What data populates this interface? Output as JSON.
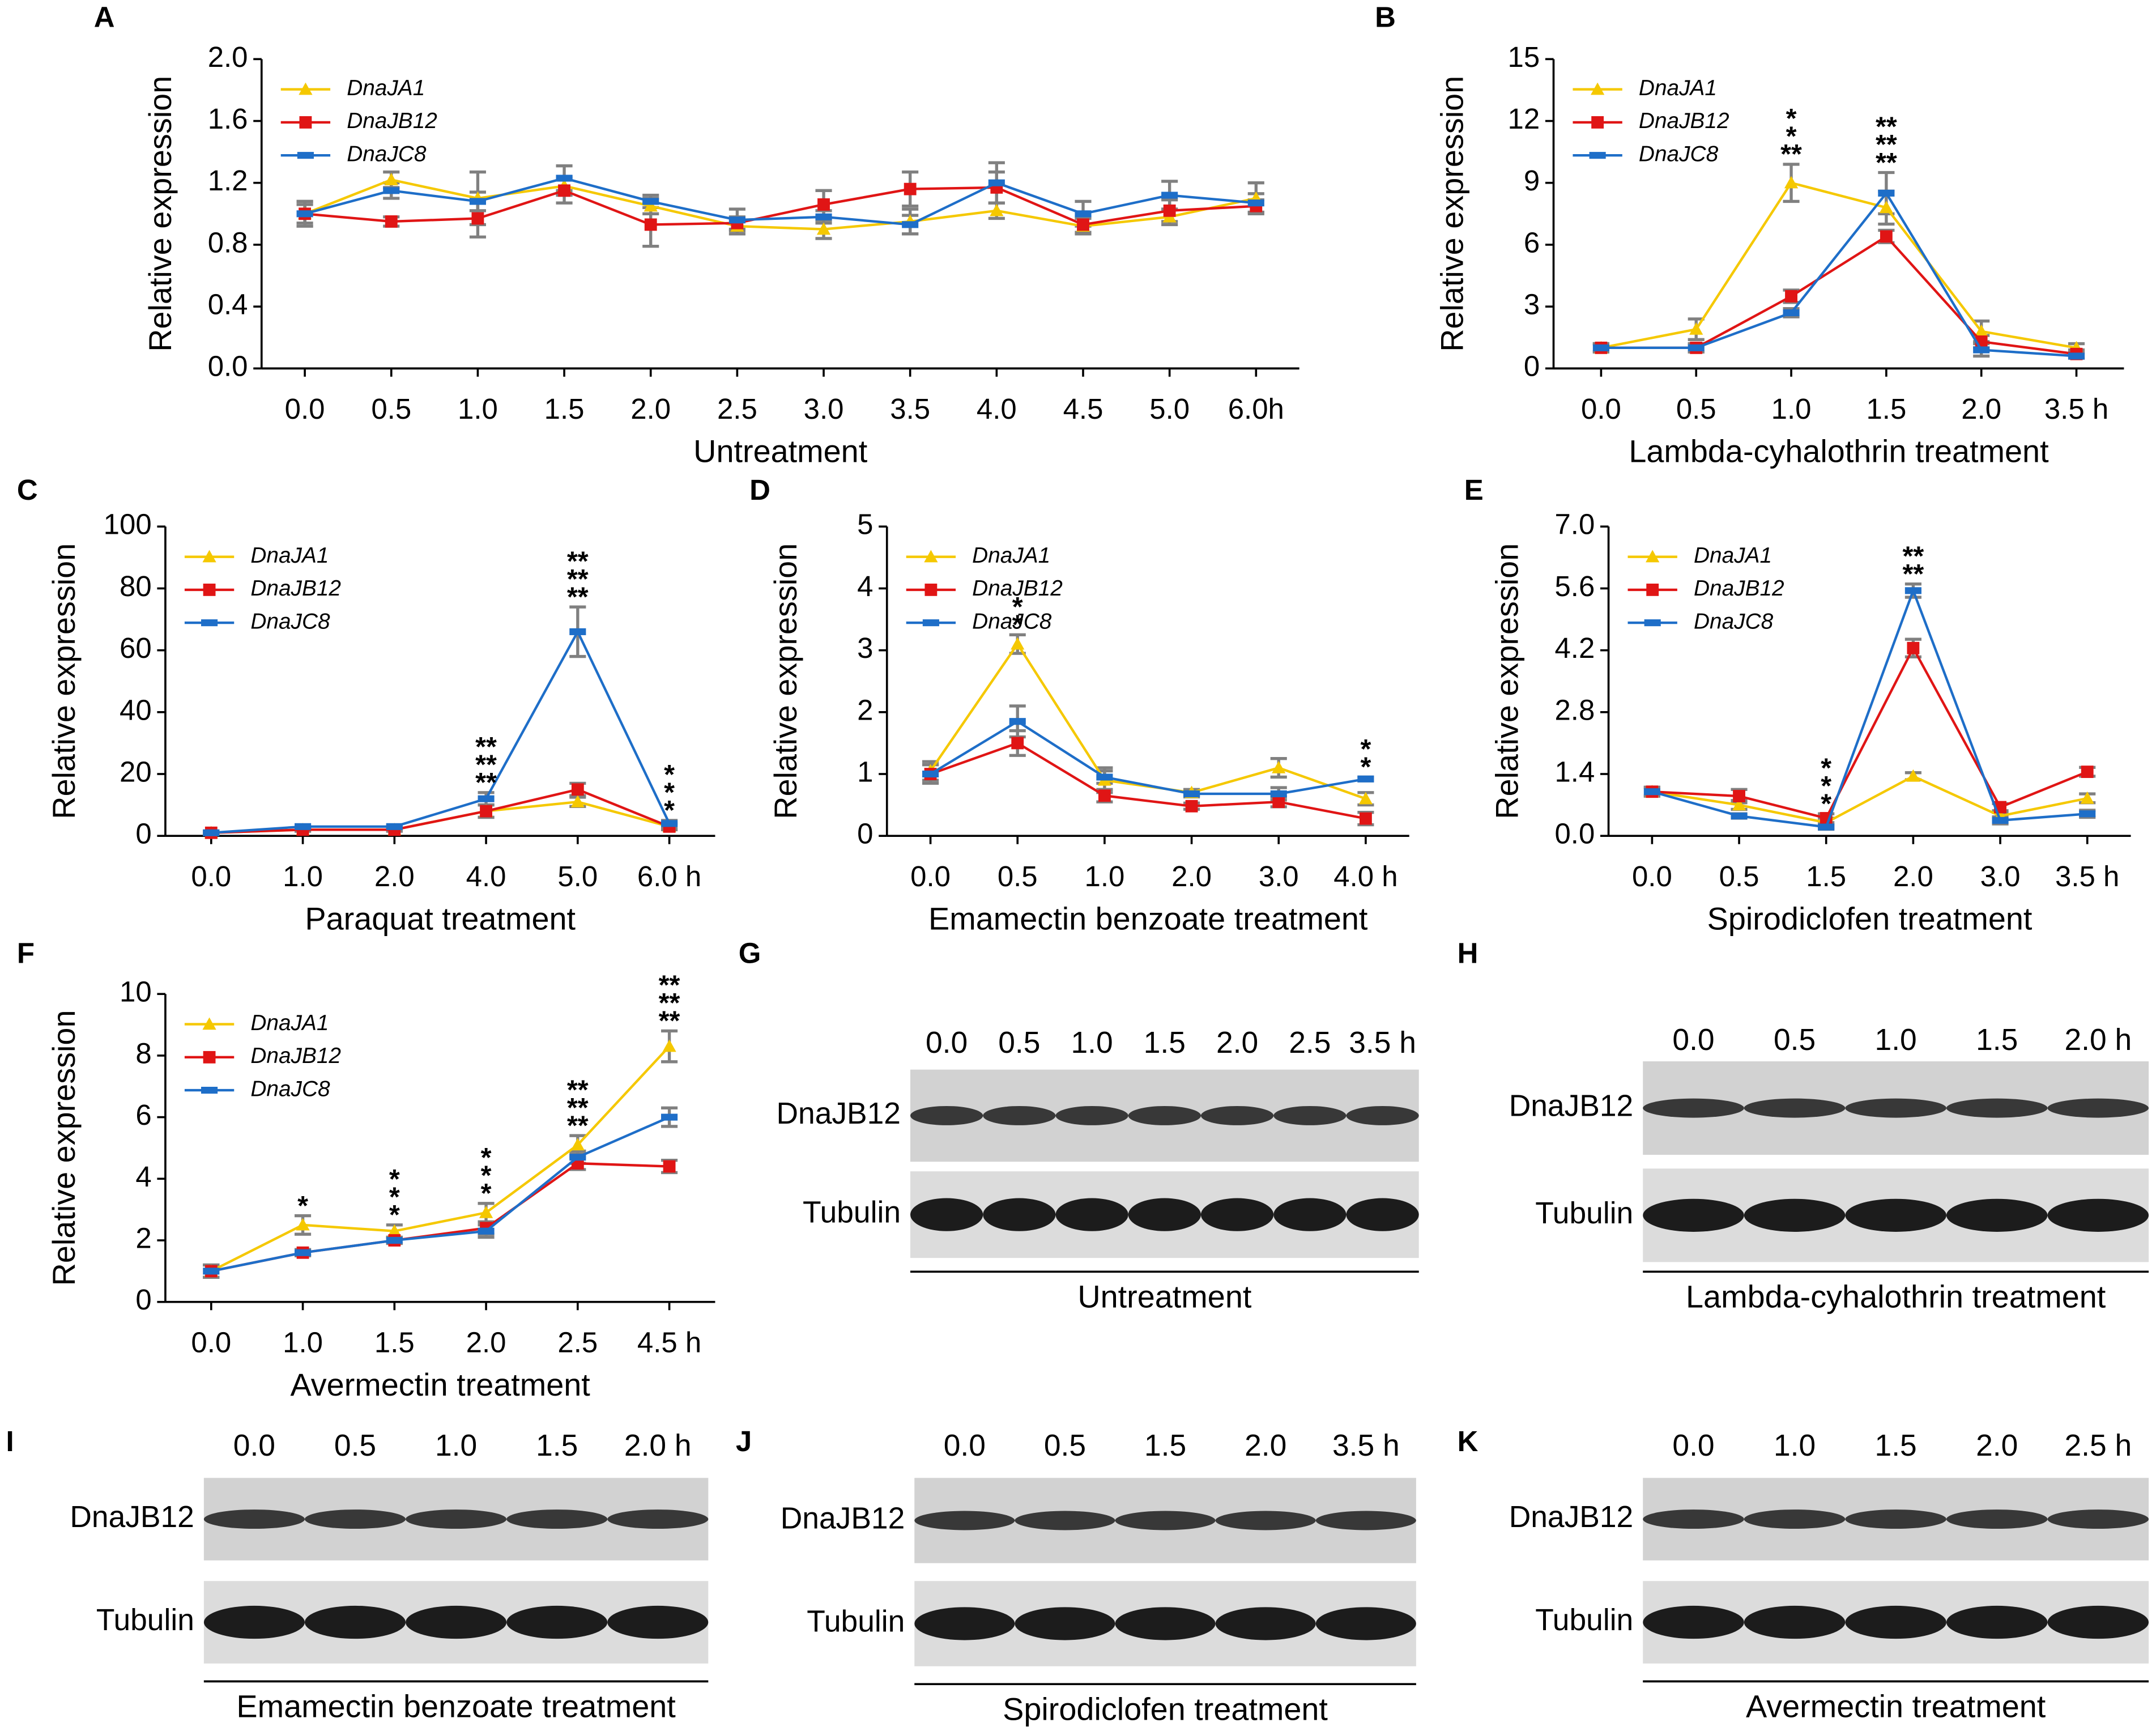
{
  "chart_data": [
    {
      "type": "line",
      "panel": "A",
      "xlabel": "Untreatment",
      "ylabel": "Relative expression",
      "categories": [
        "0.0",
        "0.5",
        "1.0",
        "1.5",
        "2.0",
        "2.5",
        "3.0",
        "3.5",
        "4.0",
        "4.5",
        "5.0",
        "6.0h"
      ],
      "ylim": [
        0,
        2
      ],
      "yticks": [
        {
          "value": 0,
          "label": "0.0"
        },
        0.4,
        0.8,
        1.2,
        1.6,
        {
          "value": 2,
          "label": "2.0"
        }
      ],
      "series": [
        {
          "name": "DnaJA1",
          "color": "#f5c800",
          "marker": "triangle",
          "values": [
            1.0,
            1.22,
            1.1,
            1.18,
            1.05,
            0.92,
            0.9,
            0.95,
            1.02,
            0.92,
            0.98,
            1.1
          ],
          "errors": [
            0.06,
            0.05,
            0.17,
            0.06,
            0.05,
            0.05,
            0.06,
            0.08,
            0.05,
            0.05,
            0.05,
            0.1
          ]
        },
        {
          "name": "DnaJB12",
          "color": "#e01515",
          "marker": "square",
          "values": [
            1.0,
            0.95,
            0.97,
            1.15,
            0.93,
            0.94,
            1.06,
            1.16,
            1.17,
            0.93,
            1.02,
            1.05
          ],
          "errors": [
            0.08,
            0.03,
            0.12,
            0.08,
            0.14,
            0.04,
            0.09,
            0.11,
            0.1,
            0.05,
            0.07,
            0.04
          ]
        },
        {
          "name": "DnaJC8",
          "color": "#1e6ec8",
          "marker": "dash",
          "values": [
            1.0,
            1.15,
            1.08,
            1.23,
            1.08,
            0.96,
            0.98,
            0.93,
            1.2,
            1.0,
            1.12,
            1.07
          ],
          "errors": [
            0.08,
            0.05,
            0.06,
            0.08,
            0.04,
            0.07,
            0.04,
            0.06,
            0.13,
            0.08,
            0.09,
            0.06
          ]
        }
      ]
    },
    {
      "type": "line",
      "panel": "B",
      "xlabel": "Lambda-cyhalothrin treatment",
      "ylabel": "Relative expression",
      "categories": [
        "0.0",
        "0.5",
        "1.0",
        "1.5",
        "2.0",
        "3.5 h"
      ],
      "ylim": [
        0,
        15
      ],
      "yticks": [
        0,
        3,
        6,
        9,
        12,
        15
      ],
      "series": [
        {
          "name": "DnaJA1",
          "color": "#f5c800",
          "marker": "triangle",
          "values": [
            1.0,
            1.9,
            9.0,
            7.8,
            1.8,
            1.0
          ],
          "errors": [
            0.2,
            0.5,
            0.9,
            0.8,
            0.5,
            0.2
          ],
          "significance": [
            null,
            null,
            "**",
            "**",
            null,
            null
          ]
        },
        {
          "name": "DnaJB12",
          "color": "#e01515",
          "marker": "square",
          "values": [
            1.0,
            1.0,
            3.5,
            6.4,
            1.3,
            0.7
          ],
          "errors": [
            0.2,
            0.2,
            0.3,
            0.3,
            0.3,
            0.2
          ],
          "significance": [
            null,
            null,
            "*",
            "**",
            null,
            null
          ]
        },
        {
          "name": "DnaJC8",
          "color": "#1e6ec8",
          "marker": "dash",
          "values": [
            1.0,
            1.0,
            2.7,
            8.5,
            0.9,
            0.6
          ],
          "errors": [
            0.2,
            0.2,
            0.2,
            1.0,
            0.3,
            0.1
          ],
          "significance": [
            null,
            null,
            "*",
            "**",
            null,
            null
          ]
        }
      ]
    },
    {
      "type": "line",
      "panel": "C",
      "xlabel": "Paraquat treatment",
      "ylabel": "Relative expression",
      "categories": [
        "0.0",
        "1.0",
        "2.0",
        "4.0",
        "5.0",
        "6.0 h"
      ],
      "ylim": [
        0,
        100
      ],
      "yticks": [
        0,
        20,
        40,
        60,
        80,
        100
      ],
      "series": [
        {
          "name": "DnaJA1",
          "color": "#f5c800",
          "marker": "triangle",
          "values": [
            1,
            2,
            2,
            8,
            11,
            3
          ],
          "errors": [
            0.5,
            0.5,
            0.5,
            2,
            1.5,
            1
          ],
          "significance": [
            null,
            null,
            null,
            "**",
            "**",
            "*"
          ]
        },
        {
          "name": "DnaJB12",
          "color": "#e01515",
          "marker": "square",
          "values": [
            1,
            2,
            2,
            8,
            15,
            3
          ],
          "errors": [
            0.5,
            0.5,
            0.5,
            2,
            2,
            1
          ],
          "significance": [
            null,
            null,
            null,
            "**",
            "**",
            "*"
          ]
        },
        {
          "name": "DnaJC8",
          "color": "#1e6ec8",
          "marker": "dash",
          "values": [
            1,
            3,
            3,
            12,
            66,
            4
          ],
          "errors": [
            0.5,
            0.5,
            0.5,
            2,
            8,
            1
          ],
          "significance": [
            null,
            null,
            null,
            "**",
            "**",
            "*"
          ]
        }
      ]
    },
    {
      "type": "line",
      "panel": "D",
      "xlabel": "Emamectin benzoate treatment",
      "ylabel": "Relative expression",
      "categories": [
        "0.0",
        "0.5",
        "1.0",
        "2.0",
        "3.0",
        "4.0 h"
      ],
      "ylim": [
        0,
        5
      ],
      "yticks": [
        0,
        1,
        2,
        3,
        4,
        5
      ],
      "series": [
        {
          "name": "DnaJA1",
          "color": "#f5c800",
          "marker": "triangle",
          "values": [
            1.05,
            3.1,
            0.9,
            0.7,
            1.1,
            0.6
          ],
          "errors": [
            0.15,
            0.15,
            0.2,
            0.05,
            0.15,
            0.1
          ],
          "significance": [
            null,
            null,
            null,
            null,
            null,
            "*"
          ]
        },
        {
          "name": "DnaJB12",
          "color": "#e01515",
          "marker": "square",
          "values": [
            1.0,
            1.5,
            0.65,
            0.48,
            0.55,
            0.28
          ],
          "errors": [
            0.15,
            0.2,
            0.1,
            0.05,
            0.08,
            0.1
          ],
          "significance": [
            null,
            "*",
            null,
            null,
            null,
            "*"
          ]
        },
        {
          "name": "DnaJC8",
          "color": "#1e6ec8",
          "marker": "dash",
          "values": [
            1.0,
            1.85,
            0.95,
            0.68,
            0.68,
            0.92
          ],
          "errors": [
            0.15,
            0.25,
            0.1,
            0.05,
            0.1,
            0.03
          ],
          "significance": [
            null,
            "*",
            null,
            null,
            null,
            null
          ]
        }
      ]
    },
    {
      "type": "line",
      "panel": "E",
      "xlabel": "Spirodiclofen treatment",
      "ylabel": "Relative expression",
      "categories": [
        "0.0",
        "0.5",
        "1.5",
        "2.0",
        "3.0",
        "3.5 h"
      ],
      "ylim": [
        0,
        7
      ],
      "yticks": [
        {
          "value": 0,
          "label": "0.0"
        },
        1.4,
        2.8,
        4.2,
        5.6,
        {
          "value": 7,
          "label": "7.0"
        }
      ],
      "series": [
        {
          "name": "DnaJA1",
          "color": "#f5c800",
          "marker": "triangle",
          "values": [
            1.0,
            0.7,
            0.3,
            1.35,
            0.45,
            0.85
          ],
          "errors": [
            0.1,
            0.1,
            0.1,
            0.08,
            0.08,
            0.1
          ],
          "significance": [
            null,
            null,
            "*",
            null,
            null,
            null
          ]
        },
        {
          "name": "DnaJB12",
          "color": "#e01515",
          "marker": "square",
          "values": [
            1.0,
            0.9,
            0.4,
            4.25,
            0.65,
            1.45
          ],
          "errors": [
            0.1,
            0.15,
            0.1,
            0.2,
            0.08,
            0.1
          ],
          "significance": [
            null,
            null,
            "*",
            "**",
            null,
            null
          ]
        },
        {
          "name": "DnaJC8",
          "color": "#1e6ec8",
          "marker": "dash",
          "values": [
            1.0,
            0.45,
            0.2,
            5.55,
            0.35,
            0.5
          ],
          "errors": [
            0.1,
            0.05,
            0.05,
            0.15,
            0.08,
            0.08
          ],
          "significance": [
            null,
            null,
            "*",
            "**",
            null,
            null
          ]
        }
      ]
    },
    {
      "type": "line",
      "panel": "F",
      "xlabel": "Avermectin treatment",
      "ylabel": "Relative expression",
      "categories": [
        "0.0",
        "1.0",
        "1.5",
        "2.0",
        "2.5",
        "4.5 h"
      ],
      "ylim": [
        0,
        10
      ],
      "yticks": [
        0,
        2,
        4,
        6,
        8,
        10
      ],
      "series": [
        {
          "name": "DnaJA1",
          "color": "#f5c800",
          "marker": "triangle",
          "values": [
            1.0,
            2.5,
            2.3,
            2.9,
            5.1,
            8.3
          ],
          "errors": [
            0.2,
            0.3,
            0.2,
            0.3,
            0.3,
            0.5
          ],
          "significance": [
            null,
            "*",
            "*",
            "*",
            "**",
            "**"
          ]
        },
        {
          "name": "DnaJB12",
          "color": "#e01515",
          "marker": "square",
          "values": [
            1.0,
            1.6,
            2.0,
            2.4,
            4.5,
            4.4
          ],
          "errors": [
            0.2,
            0.1,
            0.1,
            0.2,
            0.2,
            0.2
          ],
          "significance": [
            null,
            null,
            "*",
            "*",
            "**",
            "**"
          ]
        },
        {
          "name": "DnaJC8",
          "color": "#1e6ec8",
          "marker": "dash",
          "values": [
            1.0,
            1.6,
            2.0,
            2.3,
            4.7,
            6.0
          ],
          "errors": [
            0.2,
            0.1,
            0.1,
            0.2,
            0.2,
            0.3
          ],
          "significance": [
            null,
            null,
            "*",
            "*",
            "**",
            "**"
          ]
        }
      ]
    }
  ],
  "blots": [
    {
      "panel": "G",
      "lanes": [
        "0.0",
        "0.5",
        "1.0",
        "1.5",
        "2.0",
        "2.5",
        "3.5 h"
      ],
      "rows": [
        "DnaJB12",
        "Tubulin"
      ],
      "caption": "Untreatment"
    },
    {
      "panel": "H",
      "lanes": [
        "0.0",
        "0.5",
        "1.0",
        "1.5",
        "2.0 h"
      ],
      "rows": [
        "DnaJB12",
        "Tubulin"
      ],
      "caption": "Lambda-cyhalothrin treatment"
    },
    {
      "panel": "I",
      "lanes": [
        "0.0",
        "0.5",
        "1.0",
        "1.5",
        "2.0 h"
      ],
      "rows": [
        "DnaJB12",
        "Tubulin"
      ],
      "caption": "Emamectin benzoate treatment"
    },
    {
      "panel": "J",
      "lanes": [
        "0.0",
        "0.5",
        "1.5",
        "2.0",
        "3.5 h"
      ],
      "rows": [
        "DnaJB12",
        "Tubulin"
      ],
      "caption": "Spirodiclofen treatment"
    },
    {
      "panel": "K",
      "lanes": [
        "0.0",
        "1.0",
        "1.5",
        "2.0",
        "2.5 h"
      ],
      "rows": [
        "DnaJB12",
        "Tubulin"
      ],
      "caption": "Avermectin treatment"
    }
  ]
}
